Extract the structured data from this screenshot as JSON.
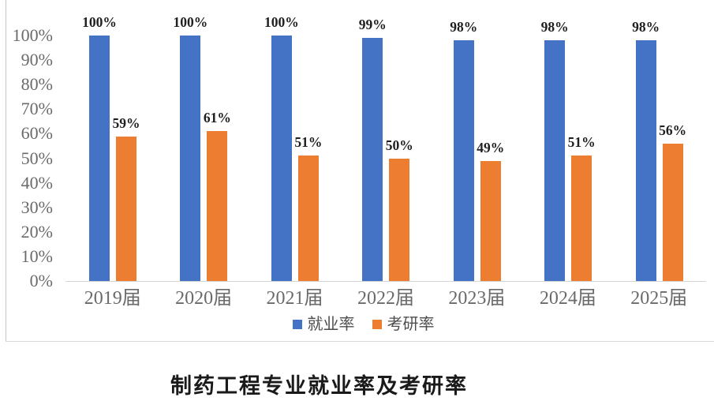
{
  "chart_data": {
    "type": "bar",
    "title": "制药工程专业就业率及考研率",
    "categories": [
      "2019届",
      "2020届",
      "2021届",
      "2022届",
      "2023届",
      "2024届",
      "2025届"
    ],
    "series": [
      {
        "name": "就业率",
        "color": "#4472C4",
        "values": [
          100,
          100,
          100,
          99,
          98,
          98,
          98
        ]
      },
      {
        "name": "考研率",
        "color": "#ED7D31",
        "values": [
          59,
          61,
          51,
          50,
          49,
          51,
          56
        ]
      }
    ],
    "data_label_format": "percent",
    "y_ticks": [
      "0%",
      "10%",
      "20%",
      "30%",
      "40%",
      "50%",
      "60%",
      "70%",
      "80%",
      "90%",
      "100%"
    ],
    "ylim": [
      0,
      100
    ],
    "grid": false,
    "legend_position": "bottom"
  },
  "colors": {
    "axis_line": "#d4d4d4",
    "tick_text": "#6a6a6a",
    "data_label_text": "#1f1f1f",
    "frame_border": "#c6c6c6"
  }
}
